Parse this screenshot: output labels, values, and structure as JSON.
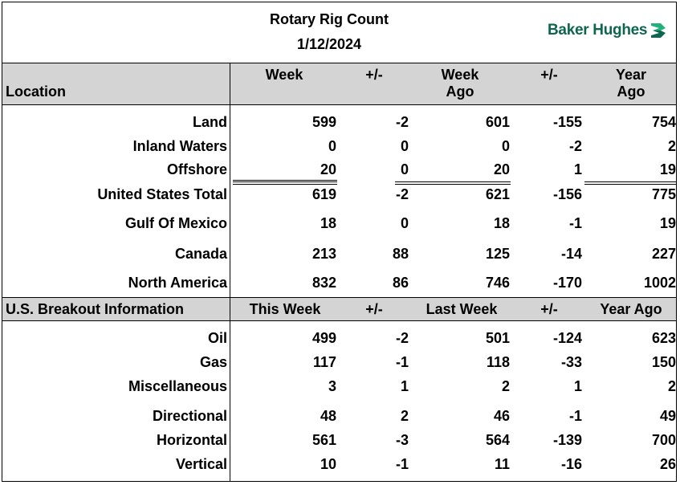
{
  "header": {
    "title": "Rotary Rig Count",
    "date": "1/12/2024",
    "logo_text": "Baker Hughes"
  },
  "location_header": {
    "location": "Location",
    "week": "Week",
    "pm1": "+/-",
    "week_ago_1": "Week",
    "week_ago_2": "Ago",
    "pm2": "+/-",
    "year_ago_1": "Year",
    "year_ago_2": "Ago"
  },
  "location_rows": [
    {
      "label": "Land",
      "week": "599",
      "chg_week": "-2",
      "week_ago": "601",
      "chg_year": "-155",
      "year_ago": "754"
    },
    {
      "label": "Inland Waters",
      "week": "0",
      "chg_week": "0",
      "week_ago": "0",
      "chg_year": "-2",
      "year_ago": "2"
    },
    {
      "label": "Offshore",
      "week": "20",
      "chg_week": "0",
      "week_ago": "20",
      "chg_year": "1",
      "year_ago": "19"
    },
    {
      "label": "United States Total",
      "week": "619",
      "chg_week": "-2",
      "week_ago": "621",
      "chg_year": "-156",
      "year_ago": "775"
    },
    {
      "label": "Gulf Of Mexico",
      "week": "18",
      "chg_week": "0",
      "week_ago": "18",
      "chg_year": "-1",
      "year_ago": "19"
    },
    {
      "label": "Canada",
      "week": "213",
      "chg_week": "88",
      "week_ago": "125",
      "chg_year": "-14",
      "year_ago": "227"
    },
    {
      "label": "North America",
      "week": "832",
      "chg_week": "86",
      "week_ago": "746",
      "chg_year": "-170",
      "year_ago": "1002"
    }
  ],
  "breakout_header": {
    "label": "U.S. Breakout Information",
    "this_week": "This Week",
    "pm1": "+/-",
    "last_week": "Last Week",
    "pm2": "+/-",
    "year_ago": "Year Ago"
  },
  "breakout_rows": [
    {
      "label": "Oil",
      "week": "499",
      "chg_week": "-2",
      "week_ago": "501",
      "chg_year": "-124",
      "year_ago": "623"
    },
    {
      "label": "Gas",
      "week": "117",
      "chg_week": "-1",
      "week_ago": "118",
      "chg_year": "-33",
      "year_ago": "150"
    },
    {
      "label": "Miscellaneous",
      "week": "3",
      "chg_week": "1",
      "week_ago": "2",
      "chg_year": "1",
      "year_ago": "2"
    },
    {
      "label": "Directional",
      "week": "48",
      "chg_week": "2",
      "week_ago": "46",
      "chg_year": "-1",
      "year_ago": "49"
    },
    {
      "label": "Horizontal",
      "week": "561",
      "chg_week": "-3",
      "week_ago": "564",
      "chg_year": "-139",
      "year_ago": "700"
    },
    {
      "label": "Vertical",
      "week": "10",
      "chg_week": "-1",
      "week_ago": "11",
      "chg_year": "-16",
      "year_ago": "26"
    }
  ],
  "colors": {
    "header_band": "#d4d4d4",
    "logo_green": "#0f6650",
    "logo_accent": "#23b07d"
  },
  "icons": [
    "baker-hughes-chevron-icon"
  ]
}
